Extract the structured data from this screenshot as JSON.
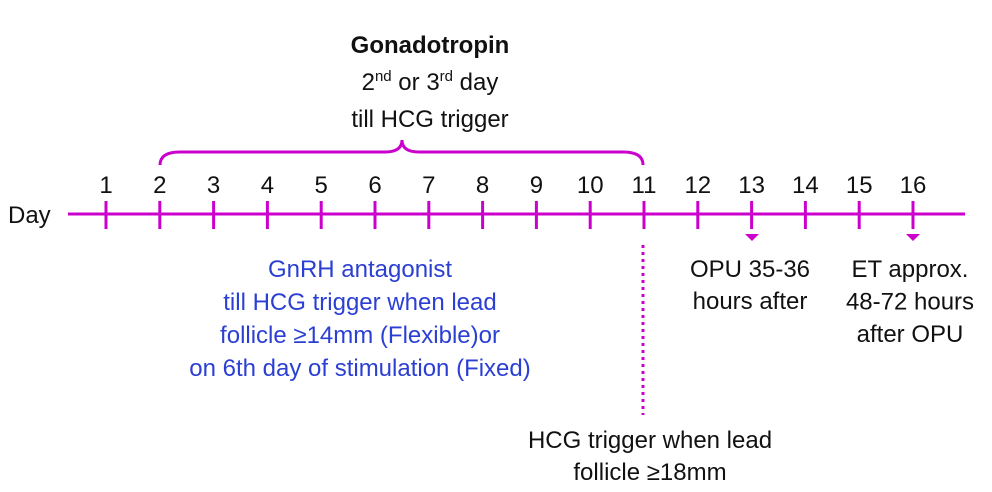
{
  "header": {
    "title": "Gonadotropin",
    "line2": [
      "2",
      "nd",
      " or 3",
      "rd",
      " day"
    ],
    "line3": "till HCG trigger"
  },
  "axis": {
    "label": "Day",
    "days": [
      1,
      2,
      3,
      4,
      5,
      6,
      7,
      8,
      9,
      10,
      11,
      12,
      13,
      14,
      15,
      16
    ]
  },
  "antagonist": [
    "GnRH antagonist",
    "till HCG trigger when lead",
    "follicle ≥14mm (Flexible)or",
    "on 6th day of stimulation (Fixed)"
  ],
  "opu": [
    "OPU 35-36",
    "hours after"
  ],
  "et": [
    "ET approx.",
    "48-72 hours",
    "after OPU"
  ],
  "trigger": [
    "HCG trigger when lead",
    "follicle ≥18mm"
  ]
}
